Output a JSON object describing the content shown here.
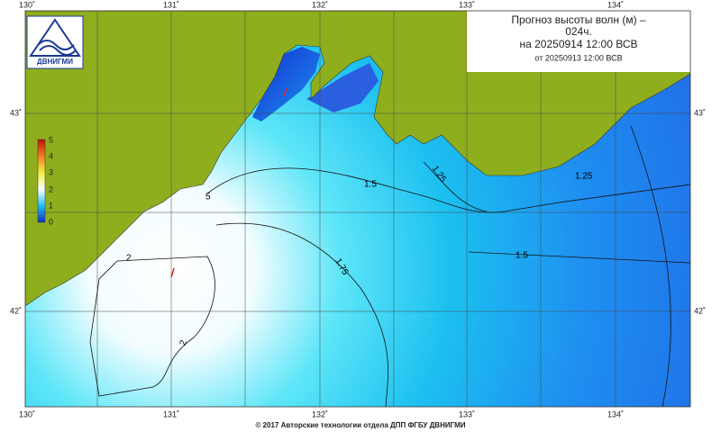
{
  "header": {
    "title": "Прогноз высоты волн (м) –",
    "lead": "024ч.",
    "valid": "на 20250914 12:00 ВСВ",
    "issued": "от 20250913 12:00 ВСВ"
  },
  "logo": {
    "text": "ДВНИГМИ"
  },
  "map": {
    "lon_labels": [
      "130˚",
      "131˚",
      "132˚",
      "133˚",
      "134˚"
    ],
    "lat_labels": [
      "43˚",
      "42˚"
    ],
    "colorbar_ticks": [
      "5",
      "4",
      "3",
      "2",
      "1",
      "0"
    ],
    "contour_labels": [
      "1.5",
      "1.75",
      "2",
      "2",
      "1.25",
      "1.25",
      "1.5",
      "5"
    ]
  },
  "footer": {
    "copyright": "© 2017 Авторские технологии отдела ДПП ФГБУ ДВНИГМИ"
  }
}
